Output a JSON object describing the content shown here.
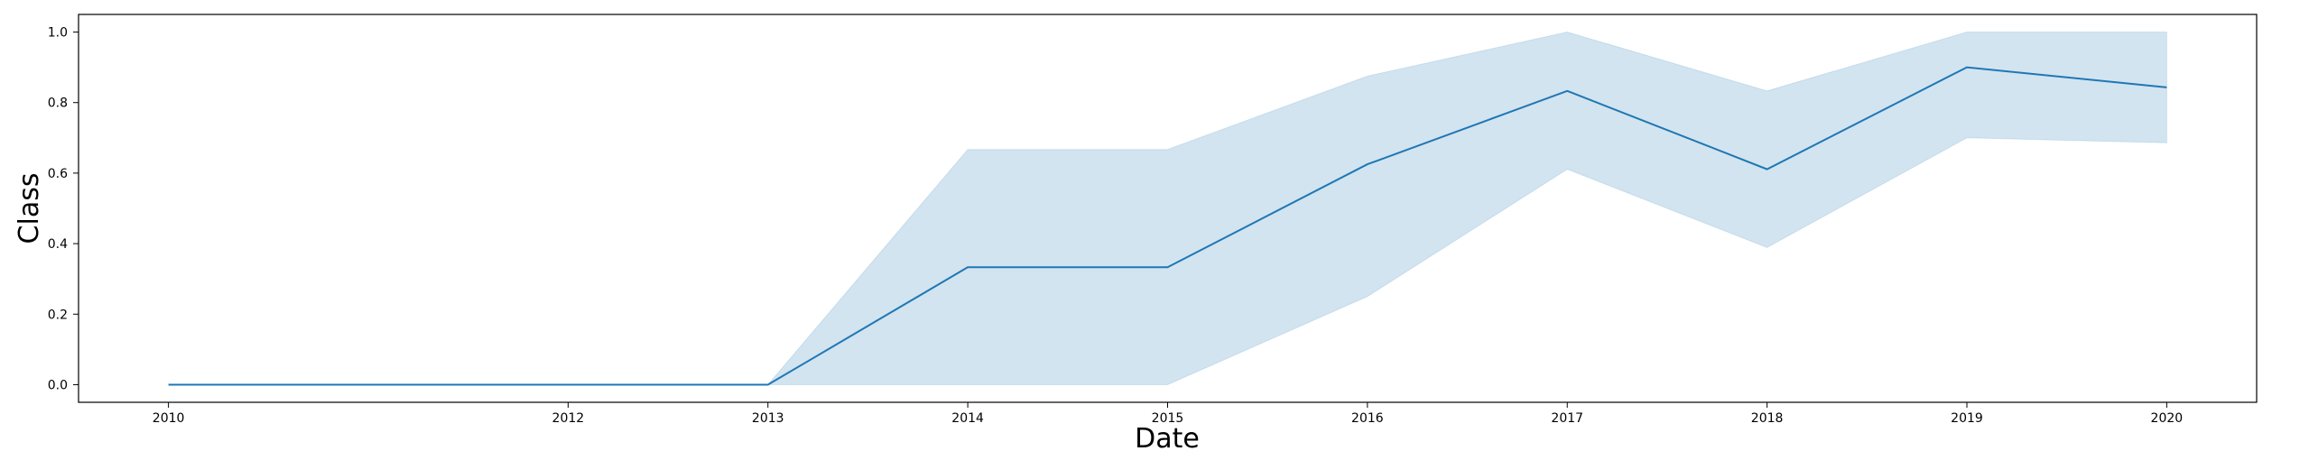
{
  "chart_data": {
    "type": "line",
    "xlabel": "Date",
    "ylabel": "Class",
    "xlim": [
      2009.55,
      2020.45
    ],
    "ylim": [
      -0.05,
      1.05
    ],
    "x_ticks": [
      2010,
      2012,
      2013,
      2014,
      2015,
      2016,
      2017,
      2018,
      2019,
      2020
    ],
    "y_ticks": [
      "0.0",
      "0.2",
      "0.4",
      "0.6",
      "0.8",
      "1.0"
    ],
    "grid": false,
    "legend": "none",
    "colors": {
      "line": "#1f77b4",
      "band": "#1f77b4"
    },
    "series": [
      {
        "x": [
          2010,
          2013,
          2014,
          2015,
          2016,
          2017,
          2018,
          2019,
          2020
        ],
        "y": [
          0.0,
          0.0,
          0.333,
          0.333,
          0.625,
          0.833,
          0.611,
          0.9,
          0.843
        ],
        "ci_lower": [
          0.0,
          0.0,
          0.0,
          0.0,
          0.25,
          0.611,
          0.389,
          0.7,
          0.686
        ],
        "ci_upper": [
          0.0,
          0.0,
          0.667,
          0.667,
          0.875,
          1.0,
          0.833,
          1.0,
          1.0
        ]
      }
    ]
  }
}
